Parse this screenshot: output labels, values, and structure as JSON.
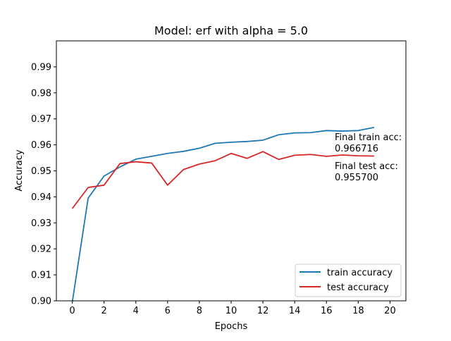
{
  "chart_data": {
    "type": "line",
    "title": "Model: erf with alpha = 5.0",
    "xlabel": "Epochs",
    "ylabel": "Accuracy",
    "xlim": [
      -1,
      21
    ],
    "ylim": [
      0.9,
      1.0
    ],
    "xticks": [
      0,
      2,
      4,
      6,
      8,
      10,
      12,
      14,
      16,
      18,
      20
    ],
    "yticks": [
      0.9,
      0.91,
      0.92,
      0.93,
      0.94,
      0.95,
      0.96,
      0.97,
      0.98,
      0.99
    ],
    "x": [
      0,
      1,
      2,
      3,
      4,
      5,
      6,
      7,
      8,
      9,
      10,
      11,
      12,
      13,
      14,
      15,
      16,
      17,
      18,
      19
    ],
    "series": [
      {
        "name": "train accuracy",
        "color": "#1f77b4",
        "values": [
          0.8965,
          0.9395,
          0.948,
          0.9515,
          0.9545,
          0.9556,
          0.9567,
          0.9575,
          0.9587,
          0.9606,
          0.961,
          0.9613,
          0.9618,
          0.9639,
          0.9646,
          0.9647,
          0.9655,
          0.9653,
          0.9655,
          0.9667
        ]
      },
      {
        "name": "test accuracy",
        "color": "#d62728",
        "values": [
          0.9355,
          0.9436,
          0.9445,
          0.9528,
          0.9535,
          0.953,
          0.9445,
          0.9505,
          0.9526,
          0.9539,
          0.9567,
          0.9548,
          0.9574,
          0.9544,
          0.956,
          0.9563,
          0.9556,
          0.9561,
          0.9558,
          0.9557
        ]
      }
    ],
    "legend": {
      "position": "lower-right"
    },
    "annotations": [
      {
        "text": "Final train acc:\n0.966716"
      },
      {
        "text": "Final test acc:\n0.955700"
      }
    ],
    "grid": false
  }
}
